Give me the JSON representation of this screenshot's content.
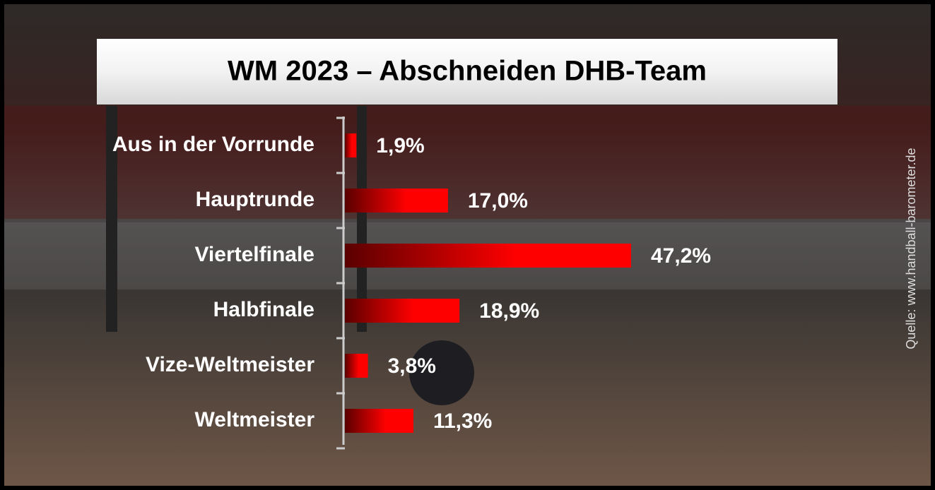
{
  "chart_data": {
    "type": "bar",
    "orientation": "horizontal",
    "title": "WM 2023 – Abschneiden DHB-Team",
    "categories": [
      "Aus in der Vorrunde",
      "Hauptrunde",
      "Viertelfinale",
      "Halbfinale",
      "Vize-Weltmeister",
      "Weltmeister"
    ],
    "values": [
      1.9,
      17.0,
      47.2,
      18.9,
      3.8,
      11.3
    ],
    "value_labels": [
      "1,9%",
      "17,0%",
      "47,2%",
      "18,9%",
      "3,8%",
      "11,3%"
    ],
    "color": "#ff0000",
    "source": "Quelle: www.handball-barometer.de"
  }
}
